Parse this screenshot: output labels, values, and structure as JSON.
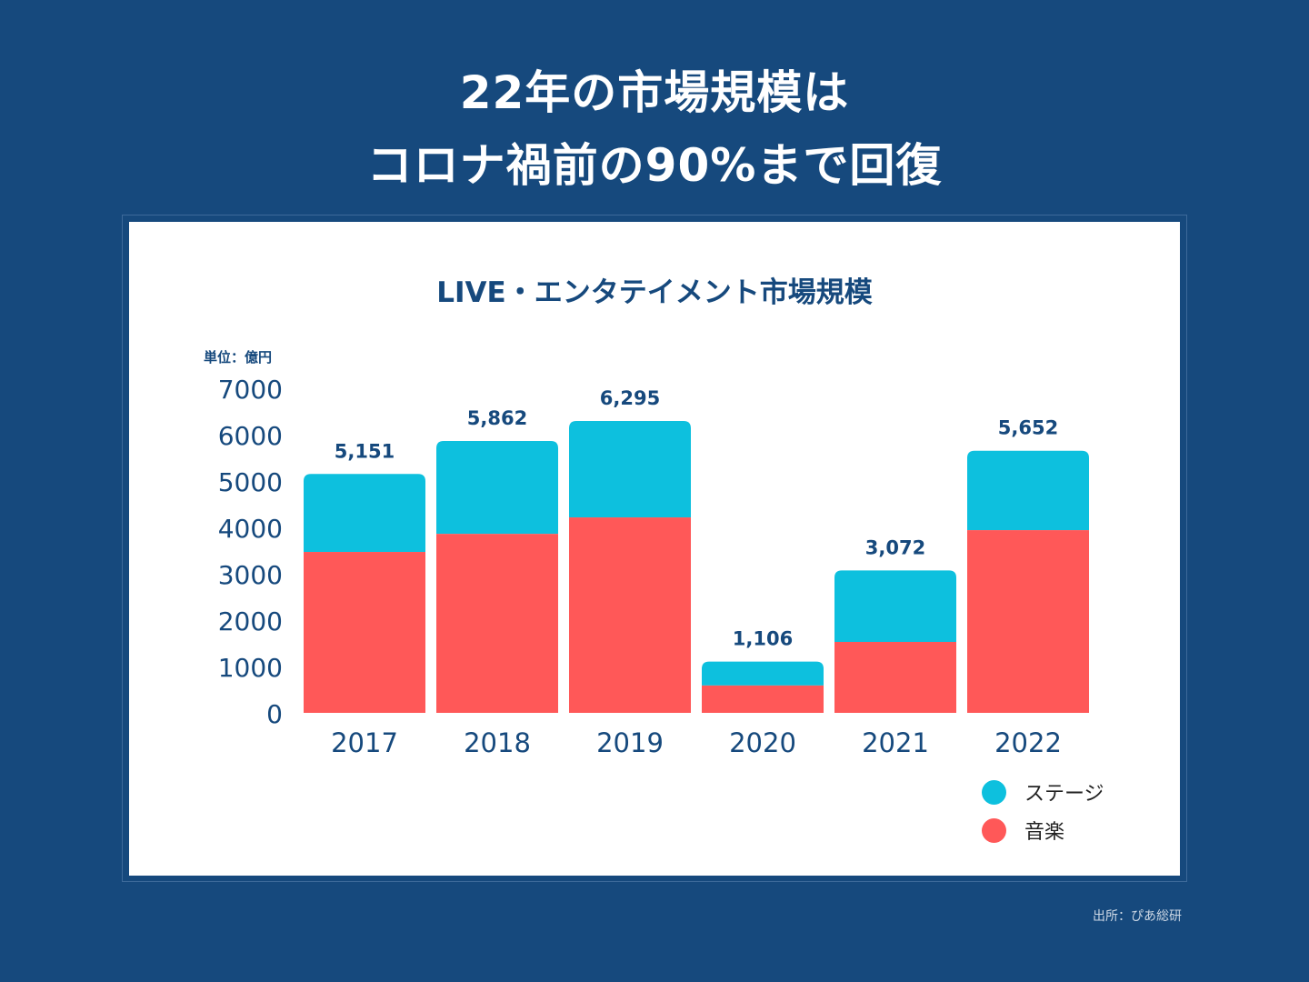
{
  "headline": {
    "line1": "22年の市場規模は",
    "line2": "コロナ禍前の90%まで回復"
  },
  "source": "出所：ぴあ総研",
  "colors": {
    "background": "#16497d",
    "stage": "#0dc0de",
    "music": "#ff5858",
    "text": "#16497d"
  },
  "chart_data": {
    "type": "bar",
    "stacked": true,
    "title": "LIVE・エンタテイメント市場規模",
    "unit_label": "単位：億円",
    "xlabel": "",
    "ylabel": "",
    "ylim": [
      0,
      7000
    ],
    "yticks": [
      "7000",
      "6000",
      "5000",
      "4000",
      "3000",
      "2000",
      "1000",
      "0"
    ],
    "categories": [
      "2017",
      "2018",
      "2019",
      "2020",
      "2021",
      "2022"
    ],
    "series": [
      {
        "name": "音楽",
        "color": "#ff5858",
        "values": [
          3470,
          3860,
          4215,
          590,
          1530,
          3940
        ]
      },
      {
        "name": "ステージ",
        "color": "#0dc0de",
        "values": [
          1681,
          2002,
          2080,
          516,
          1542,
          1712
        ]
      }
    ],
    "totals": [
      5151,
      5862,
      6295,
      1106,
      3072,
      5652
    ],
    "total_labels": [
      "5,151",
      "5,862",
      "6,295",
      "1,106",
      "3,072",
      "5,652"
    ],
    "legend": [
      {
        "label": "ステージ",
        "color": "#0dc0de"
      },
      {
        "label": "音楽",
        "color": "#ff5858"
      }
    ],
    "legend_position": "bottom-right",
    "grid": false
  }
}
